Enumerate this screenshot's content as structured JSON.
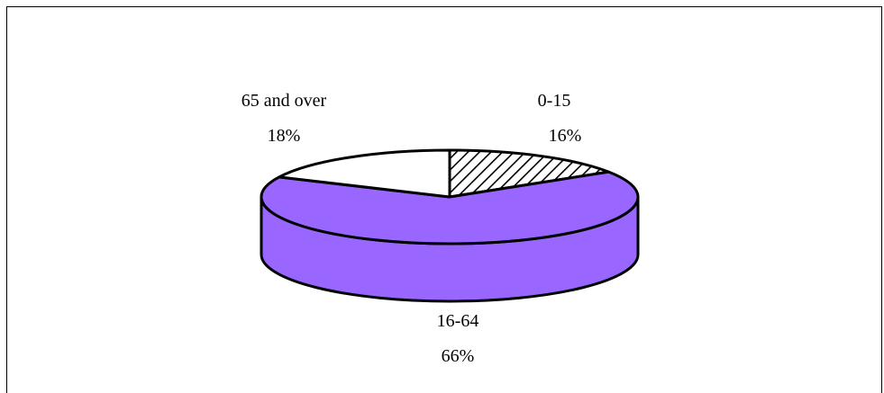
{
  "chart_data": {
    "type": "pie",
    "style": "3d",
    "title": "",
    "slices": [
      {
        "label": "0-15",
        "value": 16,
        "percent_label": "16%",
        "fill": "hatch"
      },
      {
        "label": "16-64",
        "value": 66,
        "percent_label": "66%",
        "fill": "#9966FF"
      },
      {
        "label": "65 and over",
        "value": 18,
        "percent_label": "18%",
        "fill": "#FFFFFF"
      }
    ],
    "legend": "none",
    "colors": {
      "side_16_64": "#9966FF",
      "outline": "#000000",
      "background": "#FFFFFF"
    }
  }
}
